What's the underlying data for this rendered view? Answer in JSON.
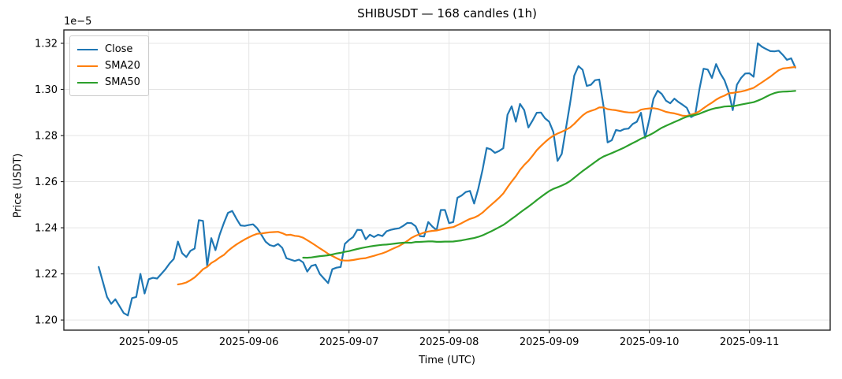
{
  "title": "SHIBUSDT — 168 candles (1h)",
  "chart_data": {
    "type": "line",
    "title": "SHIBUSDT — 168 candles (1h)",
    "xlabel": "Time (UTC)",
    "ylabel": "Price (USDT)",
    "y_offset_label": "1e−5",
    "y_scale_note": "all price values are in units of 1e-5 USDT",
    "symbol": "SHIBUSDT",
    "candle_count": 168,
    "interval": "1h",
    "start_time_utc": "2025-09-04 12:00",
    "grid": true,
    "legend_position": "upper left",
    "background_color": "#ffffff",
    "grid_color": "#e5e5e5",
    "spine_color": "#262626",
    "x_ticks": [
      {
        "label": "2025-09-05",
        "hour": 12
      },
      {
        "label": "2025-09-06",
        "hour": 36
      },
      {
        "label": "2025-09-07",
        "hour": 60
      },
      {
        "label": "2025-09-08",
        "hour": 84
      },
      {
        "label": "2025-09-09",
        "hour": 108
      },
      {
        "label": "2025-09-10",
        "hour": 132
      },
      {
        "label": "2025-09-11",
        "hour": 156
      }
    ],
    "y_ticks": [
      1.2,
      1.22,
      1.24,
      1.26,
      1.28,
      1.3,
      1.32
    ],
    "ylim": [
      1.1956,
      1.3258
    ],
    "xlim_hours": [
      -8.35,
      175.35
    ],
    "series": [
      {
        "name": "Close",
        "color": "#1f77b4",
        "kind": "close"
      },
      {
        "name": "SMA20",
        "color": "#ff7f0e",
        "kind": "sma",
        "window": 20
      },
      {
        "name": "SMA50",
        "color": "#2ca02c",
        "kind": "sma",
        "window": 50
      }
    ],
    "close_values_1e5": [
      1.223,
      1.2165,
      1.21,
      1.207,
      1.209,
      1.206,
      1.203,
      1.202,
      1.2095,
      1.21,
      1.22,
      1.2115,
      1.2177,
      1.2183,
      1.218,
      1.22,
      1.222,
      1.2245,
      1.2265,
      1.234,
      1.229,
      1.2273,
      1.23,
      1.231,
      1.2433,
      1.243,
      1.2234,
      1.2355,
      1.2303,
      1.237,
      1.242,
      1.2465,
      1.2473,
      1.244,
      1.241,
      1.2408,
      1.2412,
      1.2415,
      1.2398,
      1.237,
      1.234,
      1.2325,
      1.232,
      1.233,
      1.2313,
      1.2268,
      1.2262,
      1.2256,
      1.2262,
      1.225,
      1.221,
      1.2235,
      1.224,
      1.22,
      1.218,
      1.216,
      1.222,
      1.2227,
      1.223,
      1.233,
      1.2347,
      1.236,
      1.2391,
      1.239,
      1.235,
      1.237,
      1.236,
      1.237,
      1.2364,
      1.2385,
      1.2391,
      1.2395,
      1.2398,
      1.2408,
      1.2421,
      1.242,
      1.2406,
      1.2364,
      1.2362,
      1.2425,
      1.2405,
      1.239,
      1.2477,
      1.2477,
      1.242,
      1.2425,
      1.253,
      1.254,
      1.2555,
      1.256,
      1.2505,
      1.257,
      1.265,
      1.2746,
      1.274,
      1.2725,
      1.2733,
      1.2745,
      1.289,
      1.2927,
      1.286,
      1.2937,
      1.291,
      1.2835,
      1.2865,
      1.2899,
      1.29,
      1.2875,
      1.286,
      1.2815,
      1.269,
      1.272,
      1.283,
      1.294,
      1.306,
      1.3101,
      1.3085,
      1.3015,
      1.302,
      1.304,
      1.3043,
      1.293,
      1.277,
      1.278,
      1.2824,
      1.282,
      1.2828,
      1.283,
      1.285,
      1.286,
      1.2899,
      1.279,
      1.287,
      1.296,
      1.2995,
      1.298,
      1.2951,
      1.294,
      1.296,
      1.2945,
      1.2933,
      1.292,
      1.288,
      1.289,
      1.3,
      1.309,
      1.3086,
      1.305,
      1.311,
      1.307,
      1.304,
      1.299,
      1.291,
      1.302,
      1.305,
      1.3069,
      1.307,
      1.3055,
      1.32,
      1.3185,
      1.3175,
      1.3166,
      1.3165,
      1.3168,
      1.315,
      1.3128,
      1.3135,
      1.3095
    ]
  }
}
